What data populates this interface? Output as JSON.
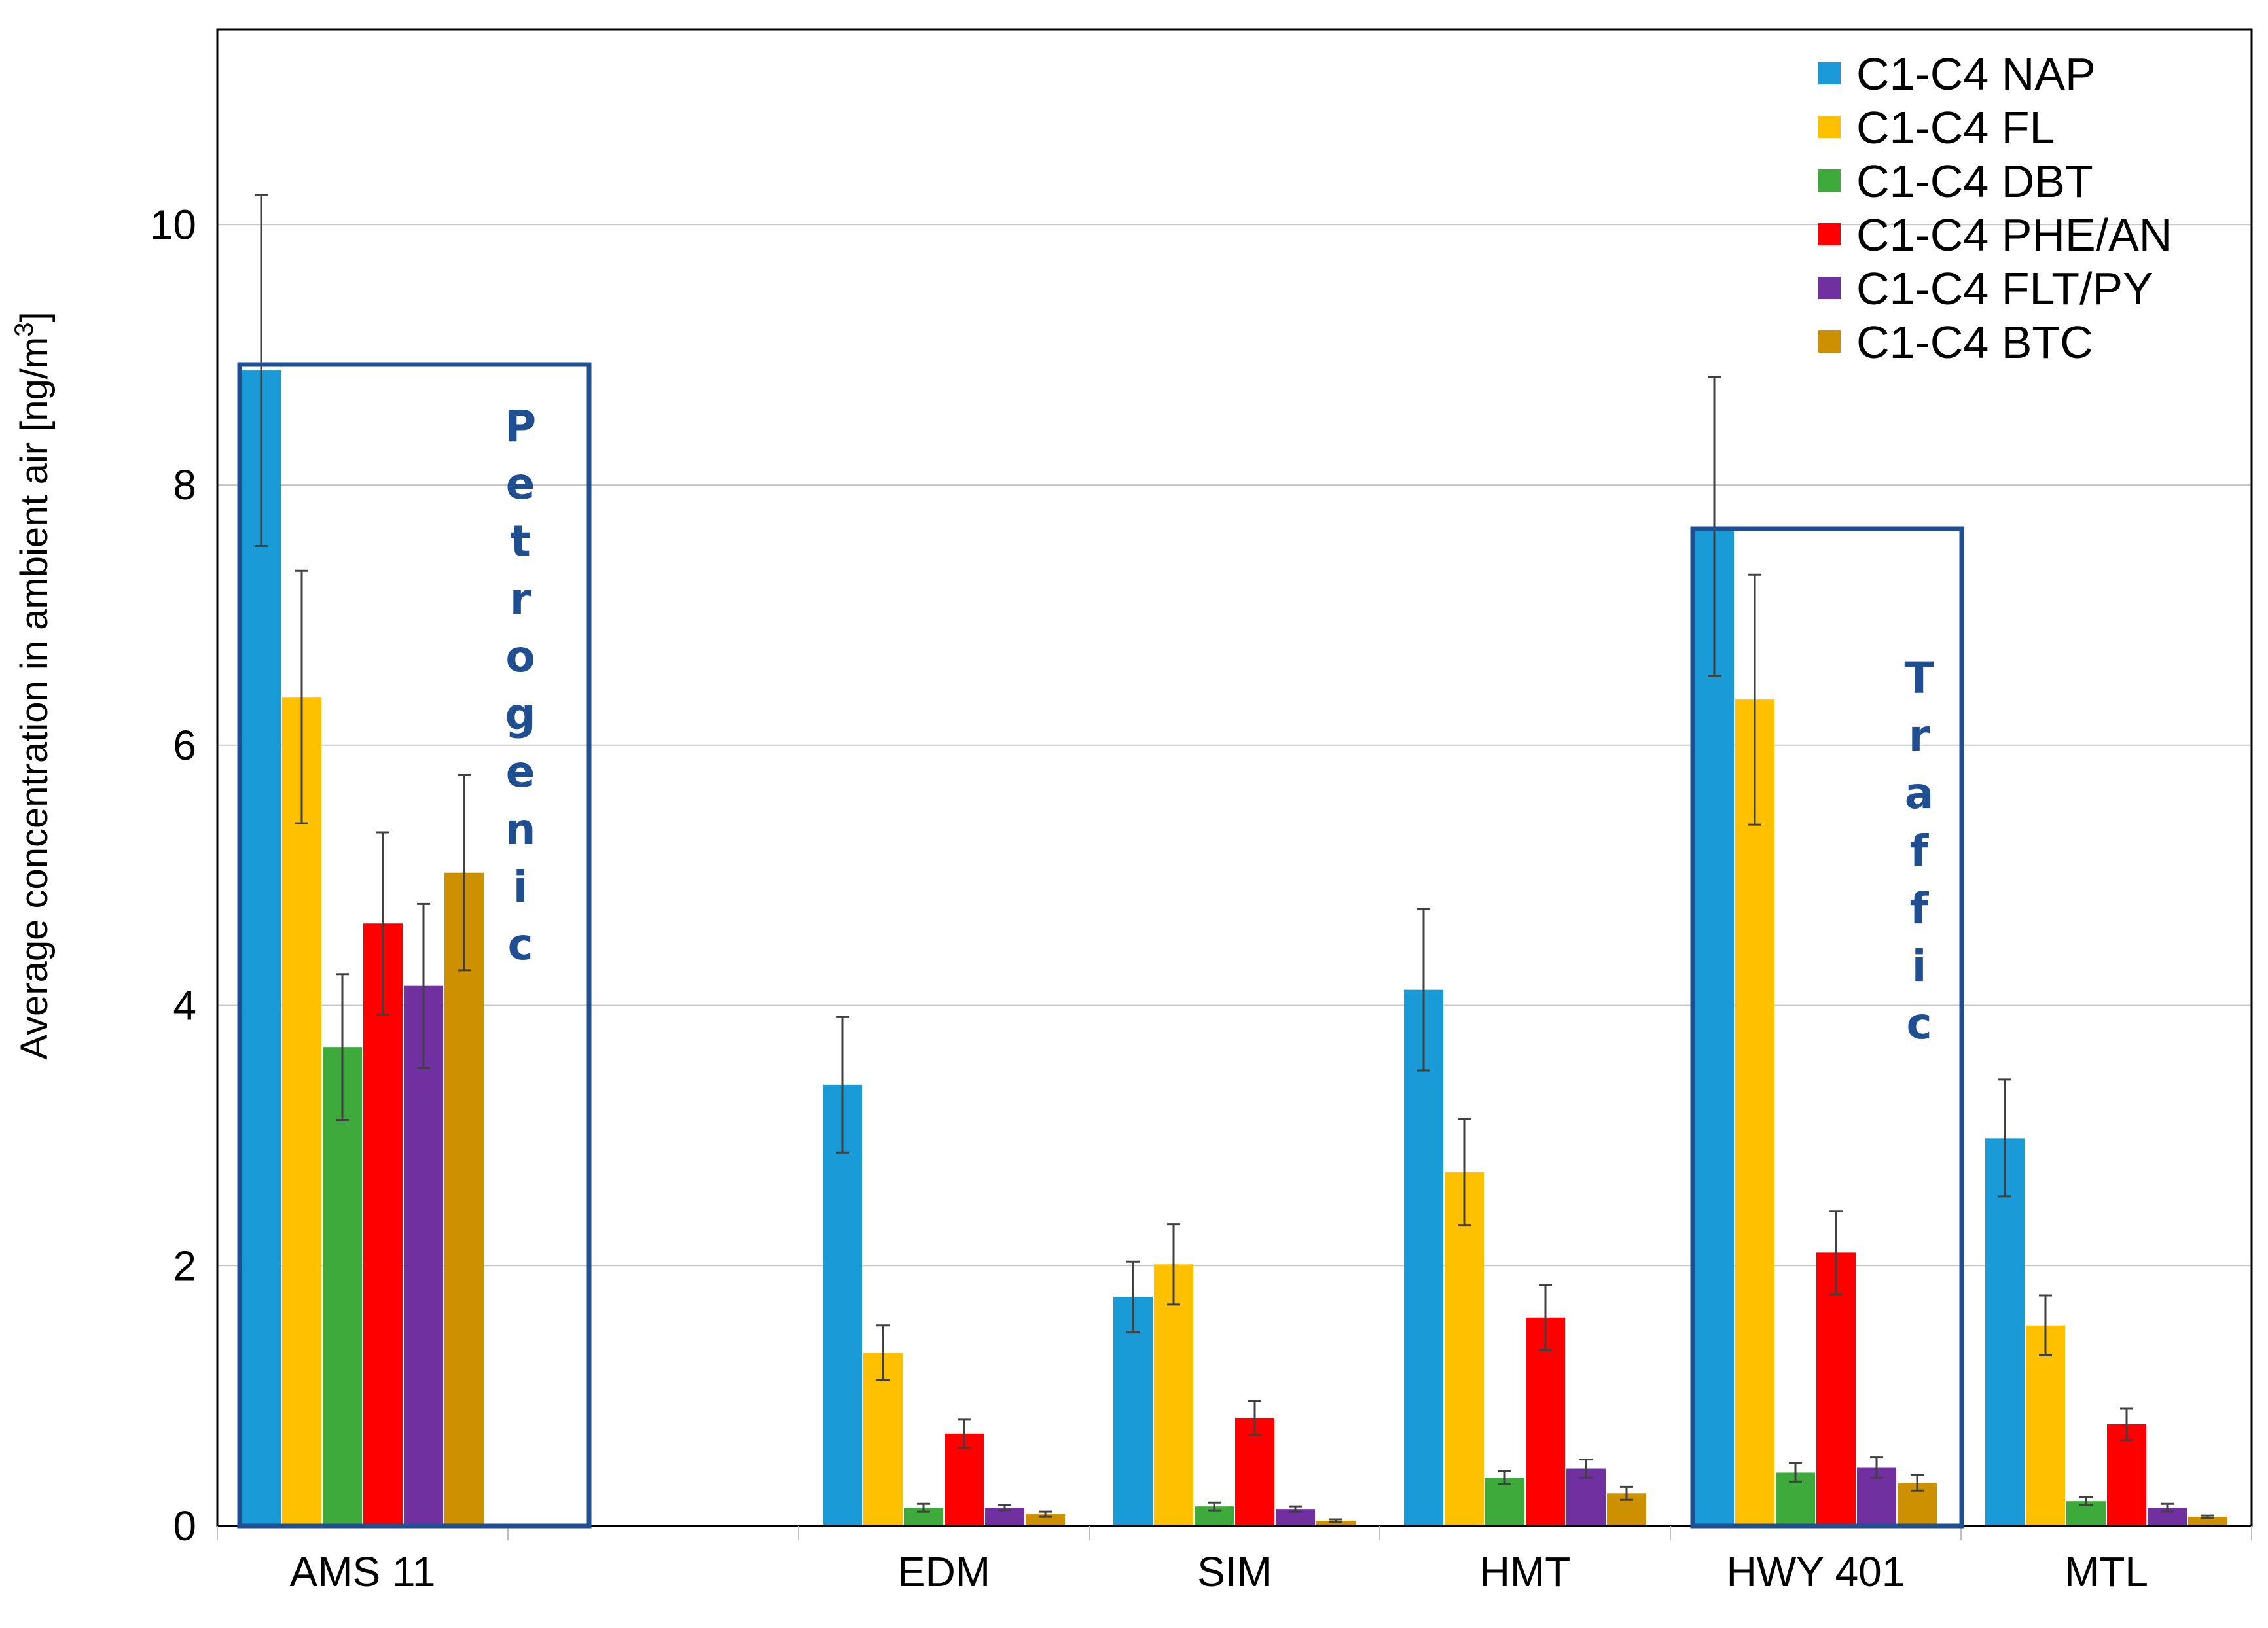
{
  "chart_data": {
    "type": "bar",
    "title": "",
    "xlabel": "",
    "ylabel": "Average concentration in ambient air [ng/m",
    "ylabel_superscript": "3",
    "ylabel_suffix": "]",
    "ylim": [
      0,
      11.5
    ],
    "yticks": [
      "0",
      "2",
      "4",
      "6",
      "8",
      "10"
    ],
    "grid": true,
    "legend_position": "top-right",
    "categories": [
      "AMS 11",
      "",
      "EDM",
      "SIM",
      "HMT",
      "HWY 401",
      "MTL"
    ],
    "colors": [
      "#1a9ad6",
      "#ffc000",
      "#3daa3b",
      "#ff0000",
      "#7030a0",
      "#cc9000"
    ],
    "series": [
      {
        "name": "C1-C4 NAP",
        "values": [
          8.88,
          null,
          3.39,
          1.76,
          4.12,
          7.68,
          2.98
        ],
        "errors": [
          1.35,
          null,
          0.52,
          0.27,
          0.62,
          1.15,
          0.45
        ]
      },
      {
        "name": "C1-C4 FL",
        "values": [
          6.37,
          null,
          1.33,
          2.01,
          2.72,
          6.35,
          1.54
        ],
        "errors": [
          0.97,
          null,
          0.21,
          0.31,
          0.41,
          0.96,
          0.23
        ]
      },
      {
        "name": "C1-C4 DBT",
        "values": [
          3.68,
          null,
          0.14,
          0.15,
          0.37,
          0.41,
          0.19
        ],
        "errors": [
          0.56,
          null,
          0.03,
          0.03,
          0.05,
          0.07,
          0.03
        ]
      },
      {
        "name": "C1-C4 PHE/AN",
        "values": [
          4.63,
          null,
          0.71,
          0.83,
          1.6,
          2.1,
          0.78
        ],
        "errors": [
          0.7,
          null,
          0.11,
          0.13,
          0.25,
          0.32,
          0.12
        ]
      },
      {
        "name": "C1-C4 FLT/PY",
        "values": [
          4.15,
          null,
          0.14,
          0.13,
          0.44,
          0.45,
          0.14
        ],
        "errors": [
          0.63,
          null,
          0.02,
          0.02,
          0.07,
          0.08,
          0.03
        ]
      },
      {
        "name": "C1-C4 BTC",
        "values": [
          5.02,
          null,
          0.09,
          0.04,
          0.25,
          0.33,
          0.07
        ],
        "errors": [
          0.75,
          null,
          0.02,
          0.01,
          0.05,
          0.06,
          0.01
        ]
      }
    ],
    "annotations": [
      {
        "label": "Petrogenic",
        "letters": [
          "P",
          "e",
          "t",
          "r",
          "o",
          "g",
          "e",
          "n",
          "i",
          "c"
        ],
        "category": "AMS 11"
      },
      {
        "label": "Traffic",
        "letters": [
          "T",
          "r",
          "a",
          "f",
          "f",
          "i",
          "c"
        ],
        "category": "HWY 401"
      }
    ]
  }
}
